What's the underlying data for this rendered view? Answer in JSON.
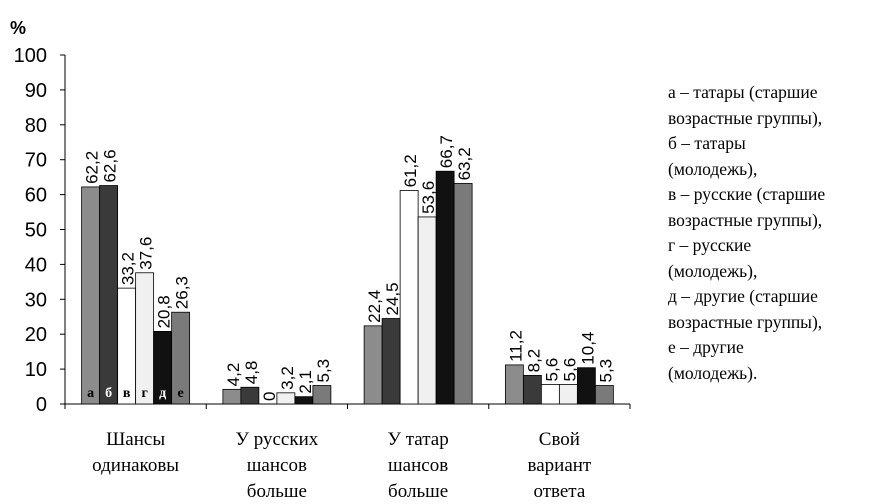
{
  "chart_data": {
    "type": "bar",
    "ylabel": "%",
    "ylim": [
      0,
      100
    ],
    "yticks": [
      0,
      10,
      20,
      30,
      40,
      50,
      60,
      70,
      80,
      90,
      100
    ],
    "categories": [
      [
        "Шансы",
        "одинаковы"
      ],
      [
        "У русских",
        "шансов",
        "больше"
      ],
      [
        "У татар",
        "шансов",
        "больше"
      ],
      [
        "Свой",
        "вариант",
        "ответа"
      ]
    ],
    "series": [
      {
        "name": "а",
        "color": "#8c8c8c",
        "values": [
          62.2,
          4.2,
          22.4,
          11.2
        ],
        "labels": [
          "62,2",
          "4,2",
          "22,4",
          "11,2"
        ]
      },
      {
        "name": "б",
        "color": "#3a3a3a",
        "values": [
          62.6,
          4.8,
          24.5,
          8.2
        ],
        "labels": [
          "62,6",
          "4,8",
          "24,5",
          "8,2"
        ]
      },
      {
        "name": "в",
        "color": "#ffffff",
        "values": [
          33.2,
          0,
          61.2,
          5.6
        ],
        "labels": [
          "33,2",
          "0",
          "61,2",
          "5,6"
        ]
      },
      {
        "name": "г",
        "color": "#f0f0f0",
        "values": [
          37.6,
          3.2,
          53.6,
          5.6
        ],
        "labels": [
          "37,6",
          "3,2",
          "53,6",
          "5,6"
        ]
      },
      {
        "name": "д",
        "color": "#111111",
        "values": [
          20.8,
          2.1,
          66.7,
          10.4
        ],
        "labels": [
          "20,8",
          "2,1",
          "66,7",
          "10,4"
        ]
      },
      {
        "name": "е",
        "color": "#7a7a7a",
        "values": [
          26.3,
          5.3,
          63.2,
          5.3
        ],
        "labels": [
          "26,3",
          "5,3",
          "63,2",
          "5,3"
        ]
      }
    ],
    "legend_position": "right",
    "legend": [
      "а – татары (старшие",
      "возрастные группы),",
      "б – татары",
      "(молодежь),",
      "в – русские (старшие",
      "возрастные группы),",
      "г – русские",
      "(молодежь),",
      "д – другие (старшие",
      "возрастные группы),",
      "е – другие",
      "(молодежь)."
    ]
  }
}
